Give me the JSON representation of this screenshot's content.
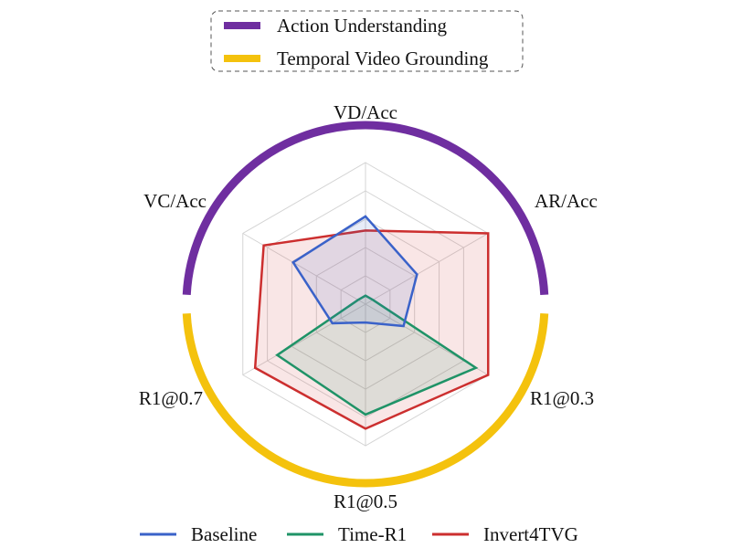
{
  "chart_data": {
    "type": "radar",
    "axes": [
      "VD/Acc",
      "AR/Acc",
      "R1@0.3",
      "R1@0.5",
      "R1@0.7",
      "VC/Acc"
    ],
    "rmax": 1.0,
    "grid_levels": [
      0.2,
      0.4,
      0.6,
      0.8,
      1.0
    ],
    "grid": true,
    "series": [
      {
        "name": "Baseline",
        "color": "#3a62c9",
        "values": [
          0.62,
          0.42,
          0.31,
          0.13,
          0.27,
          0.59
        ]
      },
      {
        "name": "Time-R1",
        "color": "#1f9367",
        "values": [
          0.06,
          0.06,
          0.9,
          0.78,
          0.72,
          0.06
        ]
      },
      {
        "name": "Invert4TVG",
        "color": "#cc2f2f",
        "values": [
          0.52,
          1.0,
          1.0,
          0.88,
          0.9,
          0.83
        ]
      }
    ],
    "groups": [
      {
        "name": "Action Understanding",
        "color": "#6f2ea0",
        "axes": [
          "VC/Acc",
          "VD/Acc",
          "AR/Acc"
        ]
      },
      {
        "name": "Temporal Video Grounding",
        "color": "#f4c20d",
        "axes": [
          "R1@0.3",
          "R1@0.5",
          "R1@0.7"
        ]
      }
    ],
    "group_legend_placement": "top",
    "series_legend_placement": "bottom"
  }
}
